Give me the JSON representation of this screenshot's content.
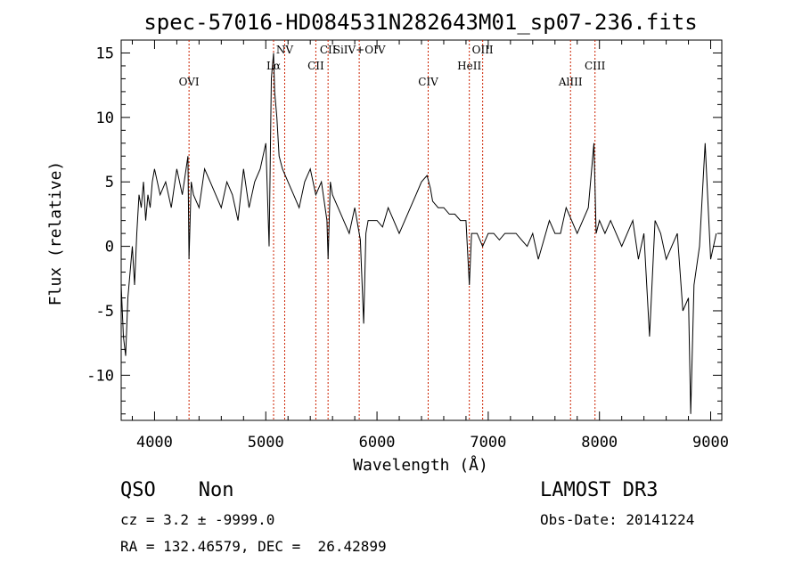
{
  "chart_data": {
    "type": "line",
    "title": "spec-57016-HD084531N282643M01_sp07-236.fits",
    "xlabel": "Wavelength (Å)",
    "ylabel": "Flux (relative)",
    "xlim": [
      3700,
      9100
    ],
    "ylim": [
      -13.5,
      16
    ],
    "xticks": [
      4000,
      5000,
      6000,
      7000,
      8000,
      9000
    ],
    "yticks": [
      -10,
      -5,
      0,
      5,
      10,
      15
    ],
    "grid": false,
    "series": [
      {
        "x": [
          3700,
          3720,
          3740,
          3760,
          3780,
          3800,
          3820,
          3840,
          3860,
          3880,
          3900,
          3920,
          3940,
          3960,
          3980,
          4000,
          4050,
          4100,
          4150,
          4200,
          4250,
          4300,
          4310,
          4330,
          4350,
          4400,
          4450,
          4500,
          4550,
          4600,
          4650,
          4700,
          4750,
          4800,
          4850,
          4900,
          4950,
          5000,
          5030,
          5050,
          5060,
          5070,
          5080,
          5100,
          5120,
          5150,
          5200,
          5250,
          5300,
          5350,
          5400,
          5450,
          5500,
          5550,
          5560,
          5580,
          5600,
          5650,
          5700,
          5750,
          5800,
          5850,
          5880,
          5900,
          5920,
          5950,
          6000,
          6050,
          6100,
          6150,
          6200,
          6250,
          6300,
          6350,
          6400,
          6450,
          6480,
          6500,
          6550,
          6600,
          6650,
          6700,
          6750,
          6800,
          6830,
          6850,
          6900,
          6950,
          7000,
          7050,
          7100,
          7150,
          7200,
          7250,
          7300,
          7350,
          7400,
          7450,
          7500,
          7550,
          7600,
          7650,
          7700,
          7750,
          7800,
          7850,
          7900,
          7950,
          7970,
          8000,
          8050,
          8100,
          8150,
          8200,
          8250,
          8300,
          8350,
          8400,
          8450,
          8500,
          8550,
          8600,
          8650,
          8700,
          8750,
          8800,
          8820,
          8850,
          8900,
          8950,
          9000,
          9050
        ],
        "values": [
          -3,
          -7,
          -8.5,
          -4,
          -2,
          0,
          -3,
          1,
          4,
          3,
          5,
          2,
          4,
          3,
          5,
          6,
          4,
          5,
          3,
          6,
          4,
          7,
          -1,
          5,
          4,
          3,
          6,
          5,
          4,
          3,
          5,
          4,
          2,
          6,
          3,
          5,
          6,
          8,
          0,
          13,
          14,
          15,
          12,
          10,
          7,
          6,
          5,
          4,
          3,
          5,
          6,
          4,
          5,
          2,
          -1,
          5,
          4,
          3,
          2,
          1,
          3,
          0.5,
          -6,
          1,
          2,
          2,
          2,
          1.5,
          3,
          2,
          1,
          2,
          3,
          4,
          5,
          5.5,
          4.5,
          3.5,
          3,
          3,
          2.5,
          2.5,
          2,
          2,
          -3,
          1,
          1,
          0,
          1,
          1,
          0.5,
          1,
          1,
          1,
          0.5,
          0,
          1,
          -1,
          0.5,
          2,
          1,
          1,
          3,
          2,
          1,
          2,
          3,
          8,
          1,
          2,
          1,
          2,
          1,
          0,
          1,
          2,
          -1,
          1,
          -7,
          2,
          1,
          -1,
          0,
          1,
          -5,
          -4,
          -13,
          -3,
          0,
          8,
          -1,
          1
        ]
      }
    ],
    "annotations": [
      {
        "label": "OVI",
        "x": 4310
      },
      {
        "label": "Lα",
        "x": 5070
      },
      {
        "label": "NV",
        "x": 5170
      },
      {
        "label": "CII",
        "x": 5450
      },
      {
        "label": "CII",
        "x": 5560
      },
      {
        "label": "SiIV+OIV",
        "x": 5840
      },
      {
        "label": "CIV",
        "x": 6460
      },
      {
        "label": "HeII",
        "x": 6830
      },
      {
        "label": "OIII",
        "x": 6950
      },
      {
        "label": "AlIII",
        "x": 7740
      },
      {
        "label": "CIII",
        "x": 7960
      }
    ]
  },
  "footer": {
    "class_label": "QSO",
    "subclass_label": "Non",
    "survey": "LAMOST DR3",
    "cz": "cz = 3.2 ± -9999.0",
    "obs_date": "Obs-Date: 20141224",
    "coords": "RA = 132.46579, DEC =  26.42899"
  }
}
